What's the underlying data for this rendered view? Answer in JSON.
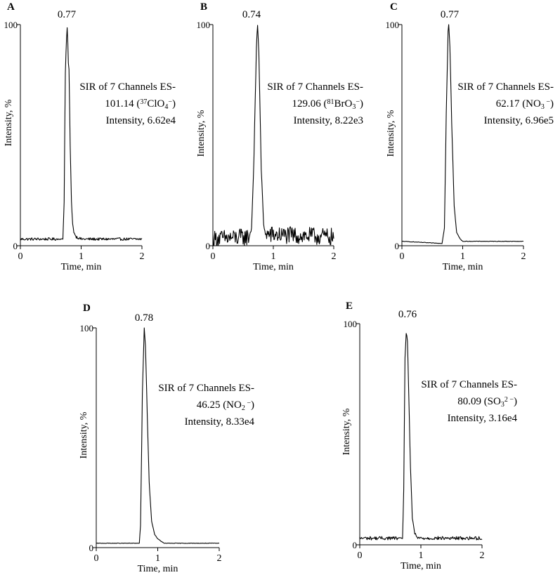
{
  "figure": {
    "panels": [
      {
        "letter": "A",
        "peak_label": "0.77",
        "annotation": [
          [
            {
              "t": "SIR of 7 Channels ES-"
            }
          ],
          [
            {
              "t": "101.14 ("
            },
            {
              "t": "37",
              "sup": true
            },
            {
              "t": "ClO"
            },
            {
              "t": "4",
              "sub": true
            },
            {
              "t": "−",
              "sup": true
            },
            {
              "t": ")"
            }
          ],
          [
            {
              "t": "Intensity, 6.62e4"
            }
          ]
        ]
      },
      {
        "letter": "B",
        "peak_label": "0.74",
        "annotation": [
          [
            {
              "t": "SIR of 7 Channels ES-"
            }
          ],
          [
            {
              "t": "129.06 ("
            },
            {
              "t": "81",
              "sup": true
            },
            {
              "t": "BrO"
            },
            {
              "t": "3",
              "sub": true
            },
            {
              "t": "−",
              "sup": true
            },
            {
              "t": ")"
            }
          ],
          [
            {
              "t": "Intensity, 8.22e3"
            }
          ]
        ]
      },
      {
        "letter": "C",
        "peak_label": "0.77",
        "annotation": [
          [
            {
              "t": "SIR of 7 Channels ES-"
            }
          ],
          [
            {
              "t": "62.17 (NO"
            },
            {
              "t": "3",
              "sub": true
            },
            {
              "t": " −",
              "sup": true
            },
            {
              "t": ")"
            }
          ],
          [
            {
              "t": "Intensity, 6.96e5"
            }
          ]
        ]
      },
      {
        "letter": "D",
        "peak_label": "0.78",
        "annotation": [
          [
            {
              "t": "SIR of 7 Channels ES-"
            }
          ],
          [
            {
              "t": "46.25 (NO"
            },
            {
              "t": "2",
              "sub": true
            },
            {
              "t": " −",
              "sup": true
            },
            {
              "t": ")"
            }
          ],
          [
            {
              "t": "Intensity, 8.33e4"
            }
          ]
        ]
      },
      {
        "letter": "E",
        "peak_label": "0.76",
        "annotation": [
          [
            {
              "t": "SIR of 7 Channels ES-"
            }
          ],
          [
            {
              "t": "80.09 (SO"
            },
            {
              "t": "3",
              "sub": true
            },
            {
              "t": "2 −",
              "sup": true
            },
            {
              "t": ")"
            }
          ],
          [
            {
              "t": "Intensity, 3.16e4"
            }
          ]
        ]
      }
    ]
  },
  "chart_data": [
    {
      "type": "line",
      "panel": "A",
      "title": "SIR of 7 Channels ES- 101.14 (37ClO4−)",
      "xlabel": "Time, min",
      "ylabel": "Intensity, %",
      "xlim": [
        0,
        2
      ],
      "ylim": [
        0,
        100
      ],
      "xticks": [
        "0",
        "1",
        "2"
      ],
      "yticks": [
        "0",
        "100"
      ],
      "peak_time": 0.77,
      "intensity": "6.62e4",
      "baseline": 3,
      "noise": 0.6,
      "peak_width": 0.1,
      "flat_top": true,
      "x": [
        0.0,
        0.7,
        0.72,
        0.74,
        0.76,
        0.77,
        0.78,
        0.8,
        0.82,
        0.84,
        0.86,
        0.88,
        0.92,
        1.0,
        2.0
      ],
      "y": [
        3,
        3,
        20,
        78,
        97,
        100,
        95,
        80,
        45,
        20,
        10,
        6,
        4,
        3,
        3
      ]
    },
    {
      "type": "line",
      "panel": "B",
      "title": "SIR of 7 Channels ES- 129.06 (81BrO3−)",
      "xlabel": "Time, min",
      "ylabel": "Intensity, %",
      "xlim": [
        0,
        2
      ],
      "ylim": [
        0,
        100
      ],
      "xticks": [
        "0",
        "1",
        "2"
      ],
      "yticks": [
        "0",
        "100"
      ],
      "peak_time": 0.74,
      "intensity": "8.22e3",
      "baseline": 3,
      "noise": 4,
      "peak_width": 0.07,
      "flat_top": false,
      "x": [
        0.0,
        0.6,
        0.64,
        0.68,
        0.72,
        0.74,
        0.76,
        0.8,
        0.84,
        0.88,
        2.0
      ],
      "y": [
        3,
        4,
        8,
        40,
        90,
        100,
        88,
        35,
        9,
        5,
        4
      ]
    },
    {
      "type": "line",
      "panel": "C",
      "title": "SIR of 7 Channels ES- 62.17 (NO3−)",
      "xlabel": "Time, min",
      "ylabel": "Intensity, %",
      "xlim": [
        0,
        2
      ],
      "ylim": [
        0,
        100
      ],
      "xticks": [
        "0",
        "1",
        "2"
      ],
      "yticks": [
        "0",
        "100"
      ],
      "peak_time": 0.77,
      "intensity": "6.96e5",
      "baseline": 2,
      "noise": 0.1,
      "peak_width": 0.1,
      "flat_top": false,
      "x": [
        0.0,
        0.66,
        0.7,
        0.73,
        0.76,
        0.77,
        0.79,
        0.82,
        0.86,
        0.9,
        0.96,
        1.0,
        2.0
      ],
      "y": [
        2,
        1,
        8,
        60,
        97,
        100,
        90,
        55,
        18,
        6,
        3,
        2,
        2
      ]
    },
    {
      "type": "line",
      "panel": "D",
      "title": "SIR of 7 Channels ES- 46.25 (NO2−)",
      "xlabel": "Time, min",
      "ylabel": "Intensity, %",
      "xlim": [
        0,
        2
      ],
      "ylim": [
        0,
        100
      ],
      "xticks": [
        "0",
        "1",
        "2"
      ],
      "yticks": [
        "0",
        "100"
      ],
      "peak_time": 0.78,
      "intensity": "8.33e4",
      "baseline": 2,
      "noise": 0.1,
      "peak_width": 0.12,
      "flat_top": false,
      "x": [
        0.0,
        0.7,
        0.72,
        0.75,
        0.78,
        0.8,
        0.83,
        0.86,
        0.9,
        0.95,
        1.0,
        1.1,
        2.0
      ],
      "y": [
        2,
        2,
        10,
        70,
        100,
        92,
        60,
        30,
        12,
        6,
        4,
        2,
        2
      ]
    },
    {
      "type": "line",
      "panel": "E",
      "title": "SIR of 7 Channels ES- 80.09 (SO32−)",
      "xlabel": "Time, min",
      "ylabel": "Intensity, %",
      "xlim": [
        0,
        2
      ],
      "ylim": [
        0,
        100
      ],
      "xticks": [
        "0",
        "1",
        "2"
      ],
      "yticks": [
        "0",
        "100"
      ],
      "peak_time": 0.76,
      "intensity": "3.16e4",
      "baseline": 3,
      "noise": 0.8,
      "peak_width": 0.1,
      "flat_top": true,
      "x": [
        0.0,
        0.7,
        0.72,
        0.74,
        0.76,
        0.78,
        0.8,
        0.83,
        0.86,
        0.9,
        0.95,
        2.0
      ],
      "y": [
        3,
        3,
        25,
        85,
        100,
        95,
        70,
        35,
        12,
        5,
        3,
        3
      ]
    }
  ]
}
